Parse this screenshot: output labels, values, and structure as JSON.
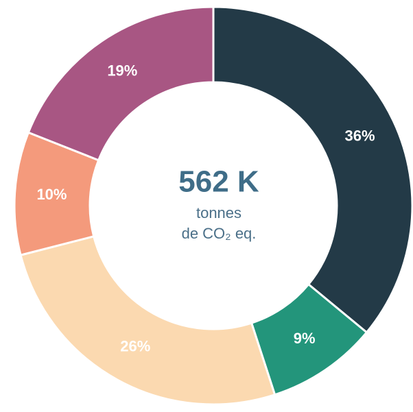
{
  "chart_data": {
    "type": "donut",
    "values": [
      36,
      9,
      26,
      10,
      19
    ],
    "value_labels": [
      "36%",
      "9%",
      "26%",
      "10%",
      "19%"
    ],
    "colors": [
      "#233a47",
      "#23957b",
      "#fbd9b0",
      "#f49a7c",
      "#a85683"
    ],
    "center_value": "562 K",
    "center_label": [
      "tonnes",
      "de CO₂ eq."
    ]
  }
}
